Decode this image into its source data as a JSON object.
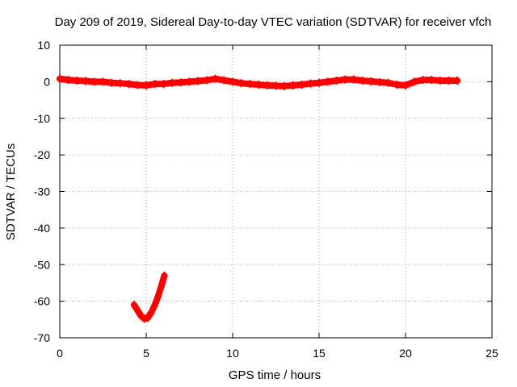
{
  "chart_data": {
    "type": "scatter",
    "title": "Day 209 of 2019, Sidereal Day-to-day VTEC variation (SDTVAR) for receiver vfch",
    "xlabel": "GPS time / hours",
    "ylabel": "SDTVAR / TECUs",
    "xlim": [
      0,
      25
    ],
    "ylim": [
      -70,
      10
    ],
    "xticks": [
      0,
      5,
      10,
      15,
      20,
      25
    ],
    "yticks": [
      10,
      0,
      -10,
      -20,
      -30,
      -40,
      -50,
      -60,
      -70
    ],
    "grid": true,
    "legend": "none",
    "series_color": "#ff0000",
    "series": [
      {
        "name": "main",
        "x": [
          0,
          0.5,
          1,
          1.5,
          2,
          2.5,
          3,
          3.5,
          4,
          4.5,
          5,
          5.5,
          6,
          6.5,
          7,
          7.5,
          8,
          8.5,
          9,
          9.5,
          10,
          10.5,
          11,
          11.5,
          12,
          12.5,
          13,
          13.5,
          14,
          14.5,
          15,
          15.5,
          16,
          16.5,
          17,
          17.5,
          18,
          18.5,
          19,
          19.5,
          20,
          20.5,
          21,
          21.5,
          22,
          22.5,
          23
        ],
        "y": [
          0.8,
          0.5,
          0.3,
          0.2,
          0.0,
          0.0,
          -0.3,
          -0.4,
          -0.6,
          -0.9,
          -1.0,
          -0.6,
          -0.6,
          -0.3,
          -0.2,
          0.0,
          0.2,
          0.4,
          0.8,
          0.4,
          0.0,
          -0.4,
          -0.6,
          -0.8,
          -1.0,
          -1.1,
          -1.2,
          -1.0,
          -0.8,
          -0.5,
          -0.3,
          0.0,
          0.3,
          0.6,
          0.6,
          0.3,
          0.1,
          -0.1,
          -0.3,
          -0.8,
          -1.0,
          0.0,
          0.5,
          0.5,
          0.3,
          0.3,
          0.3
        ]
      },
      {
        "name": "secondary",
        "x": [
          4.3,
          4.5,
          4.7,
          4.9,
          5.1,
          5.3,
          5.5,
          5.7,
          5.9,
          6.05
        ],
        "y": [
          -61,
          -62.5,
          -64,
          -64.8,
          -64.5,
          -63,
          -61,
          -58.5,
          -55.5,
          -53
        ]
      }
    ]
  }
}
